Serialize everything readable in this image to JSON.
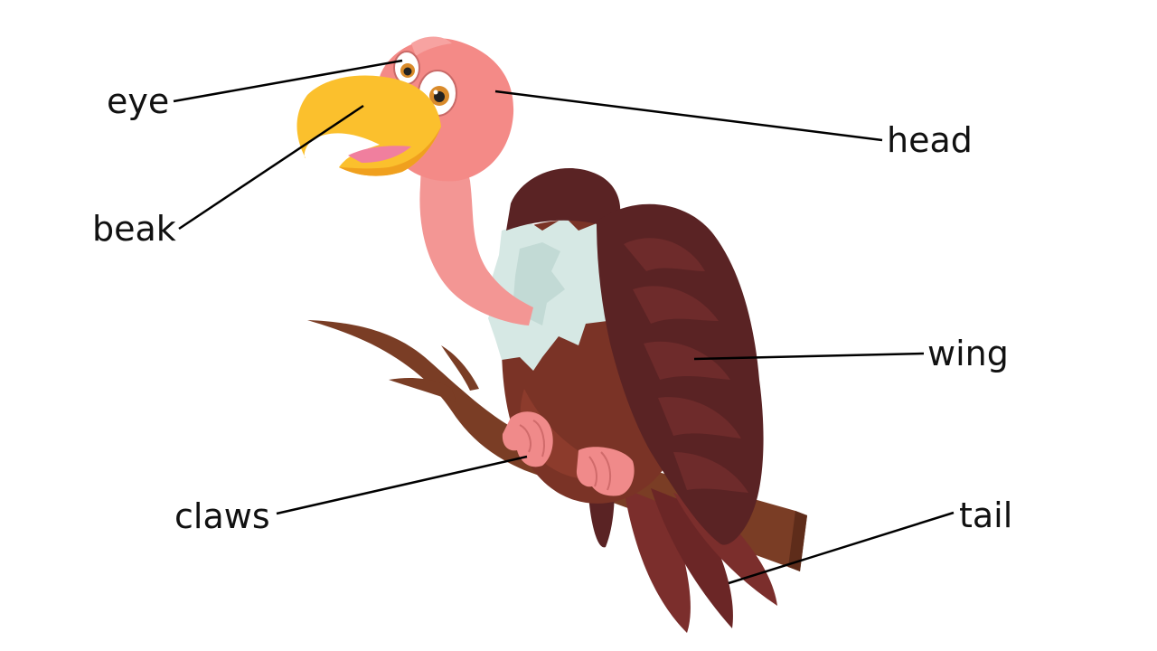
{
  "labels": {
    "eye": "eye",
    "beak": "beak",
    "head": "head",
    "wing": "wing",
    "claws": "claws",
    "tail": "tail"
  },
  "colors": {
    "head_skin": "#f48a87",
    "neck_skin": "#f39694",
    "beak": "#fbc02d",
    "beak_shadow": "#f0a01e",
    "mouth": "#f07f9e",
    "ruff": "#d6e8e4",
    "body": "#7a3326",
    "wing_dark": "#5a2324",
    "wing_mid": "#6e2b2b",
    "tail": "#7b2e2c",
    "branch": "#7a3d25",
    "claws": "#f08a8a",
    "leader_line": "#000000"
  }
}
